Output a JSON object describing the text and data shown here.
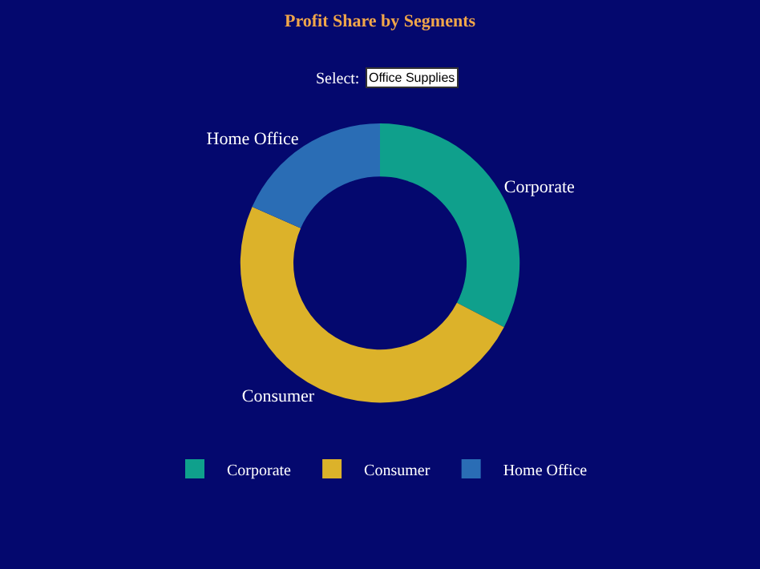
{
  "chart_data": {
    "type": "donut",
    "title": "Profit Share by Segments",
    "annotations": [
      "Select:",
      "Office Supplies"
    ],
    "categories": [
      "Corporate",
      "Consumer",
      "Home Office"
    ],
    "values": [
      32.6,
      49.0,
      18.4
    ],
    "colors": [
      "#0fa08c",
      "#dcb22a",
      "#2a6db5"
    ],
    "legend": "bottom"
  }
}
